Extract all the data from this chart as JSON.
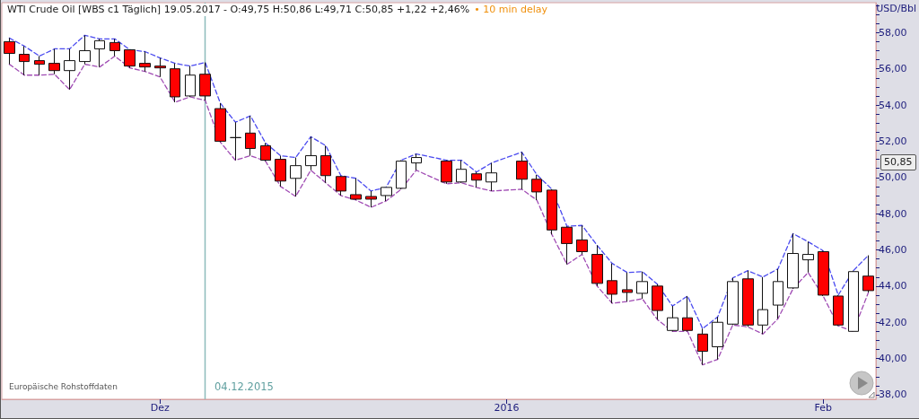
{
  "chart_data": {
    "type": "candlestick",
    "title": "WTI Crude Oil [WBS c1 Täglich] 19.05.2017 - O:49,75 H:50,86 L:49,71 C:50,85 +1,22 +2,46%",
    "subtitle": "• 10 min delay",
    "ylabel": "USD/Bbl",
    "annotations": [
      "Europäische Rohstoffdaten",
      "04.12.2015",
      "50,85"
    ],
    "categories": [
      null,
      null,
      null,
      null,
      null,
      null,
      null,
      null,
      null,
      null,
      "Dez",
      null,
      null,
      null,
      null,
      null,
      null,
      null,
      null,
      null,
      null,
      null,
      null,
      null,
      null,
      null,
      null,
      null,
      null,
      null,
      null,
      null,
      null,
      "2016",
      null,
      null,
      null,
      null,
      null,
      null,
      null,
      null,
      null,
      null,
      null,
      null,
      null,
      null,
      null,
      null,
      null,
      null,
      null,
      null,
      "Feb",
      null,
      null,
      null
    ],
    "ohlc": [
      [
        57.5,
        57.7,
        56.25,
        56.85
      ],
      [
        56.8,
        57.25,
        55.65,
        56.4
      ],
      [
        56.45,
        56.7,
        55.65,
        56.25
      ],
      [
        56.3,
        57.1,
        55.7,
        55.9
      ],
      [
        55.9,
        57.1,
        54.85,
        56.45
      ],
      [
        56.4,
        57.85,
        56.25,
        57
      ],
      [
        57.1,
        57.65,
        56.1,
        57.55
      ],
      [
        57.45,
        57.65,
        56.7,
        57
      ],
      [
        57.05,
        57.05,
        56.05,
        56.15
      ],
      [
        56.3,
        56.95,
        55.85,
        56.1
      ],
      [
        56.15,
        56.6,
        55.55,
        56.05
      ],
      [
        56,
        56.3,
        54.15,
        54.45
      ],
      [
        54.5,
        56.15,
        54.45,
        55.65
      ],
      [
        55.7,
        56.35,
        54.25,
        54.5
      ],
      [
        53.8,
        54.1,
        51.95,
        52
      ],
      [
        52.2,
        53.05,
        50.95,
        52.2
      ],
      [
        52.45,
        53.4,
        51.2,
        51.6
      ],
      [
        51.75,
        51.9,
        50.9,
        50.95
      ],
      [
        51,
        51.2,
        49.5,
        49.8
      ],
      [
        49.95,
        51.1,
        48.95,
        50.65
      ],
      [
        50.65,
        52.25,
        50.4,
        51.2
      ],
      [
        51.2,
        51.75,
        49.7,
        50.1
      ],
      [
        50.05,
        50.1,
        49,
        49.25
      ],
      [
        49.05,
        49.95,
        48.75,
        48.8
      ],
      [
        48.95,
        49.25,
        48.35,
        48.8
      ],
      [
        49,
        49.45,
        48.7,
        49.45
      ],
      [
        49.4,
        50.95,
        49.35,
        50.9
      ],
      [
        50.8,
        51.3,
        50.4,
        51.1
      ],
      null,
      [
        50.9,
        50.95,
        49.65,
        49.75
      ],
      [
        49.75,
        50.95,
        49.7,
        50.45
      ],
      [
        50.2,
        50.3,
        49.45,
        49.85
      ],
      [
        49.75,
        50.8,
        49.25,
        50.25
      ],
      null,
      [
        50.9,
        51.4,
        49.35,
        49.9
      ],
      [
        49.9,
        50.15,
        48.75,
        49.2
      ],
      [
        49.3,
        49.35,
        46.85,
        47.1
      ],
      [
        47.25,
        47.3,
        45.2,
        46.35
      ],
      [
        46.55,
        47.35,
        45.75,
        45.9
      ],
      [
        45.75,
        46.25,
        44,
        44.15
      ],
      [
        44.3,
        45.25,
        43.05,
        43.55
      ],
      [
        43.8,
        44.75,
        43.15,
        43.65
      ],
      [
        43.6,
        44.8,
        43.3,
        44.25
      ],
      [
        44,
        44.1,
        42.15,
        42.65
      ],
      [
        41.55,
        42.9,
        41.5,
        42.25
      ],
      [
        42.25,
        43.45,
        41.5,
        41.55
      ],
      [
        41.35,
        41.65,
        39.65,
        40.4
      ],
      [
        40.65,
        42.3,
        39.95,
        42
      ],
      [
        41.9,
        44.45,
        41.85,
        44.25
      ],
      [
        44.4,
        44.85,
        41.75,
        41.85
      ],
      [
        41.85,
        44.5,
        41.35,
        42.7
      ],
      [
        42.95,
        44.95,
        42.2,
        44.25
      ],
      [
        43.9,
        46.9,
        43.85,
        45.8
      ],
      [
        45.45,
        46.45,
        44.75,
        45.75
      ],
      [
        45.9,
        45.95,
        43.45,
        43.5
      ],
      [
        43.45,
        43.5,
        41.8,
        41.85
      ],
      [
        41.5,
        44.85,
        41.5,
        44.8
      ],
      [
        44.55,
        45.7,
        43.65,
        43.75
      ]
    ],
    "colors": [
      "#ff0000",
      "#ff0000",
      "#ff0000",
      "#ff0000",
      "#ffffff",
      "#ffffff",
      "#ffffff",
      "#ff0000",
      "#ff0000",
      "#ff0000",
      "#ff0000",
      "#ff0000",
      "#ffffff",
      "#ff0000",
      "#ff0000",
      "#111111",
      "#ff0000",
      "#ff0000",
      "#ff0000",
      "#ffffff",
      "#ffffff",
      "#ff0000",
      "#ff0000",
      "#ff0000",
      "#ff0000",
      "#ffffff",
      "#ffffff",
      "#ffffff",
      null,
      "#ff0000",
      "#ffffff",
      "#ff0000",
      "#ffffff",
      null,
      "#ff0000",
      "#ff0000",
      "#ff0000",
      "#ff0000",
      "#ff0000",
      "#ff0000",
      "#ff0000",
      "#ff0000",
      "#ffffff",
      "#ff0000",
      "#ffffff",
      "#ff0000",
      "#ff0000",
      "#ffffff",
      "#ffffff",
      "#ff0000",
      "#ffffff",
      "#ffffff",
      "#ffffff",
      "#ffffff",
      "#ff0000",
      "#ff0000",
      "#ffffff",
      "#ff0000"
    ],
    "series": [
      {
        "type": "line",
        "color": "#4a4af0",
        "line_style": "dashed",
        "values": [
          57.7,
          57.25,
          56.7,
          57.1,
          57.1,
          57.85,
          57.65,
          57.65,
          57.05,
          56.95,
          56.6,
          56.3,
          56.15,
          56.35,
          54.1,
          53.05,
          53.4,
          51.9,
          51.2,
          51.1,
          52.25,
          51.75,
          50.1,
          49.95,
          49.25,
          49.45,
          50.95,
          51.3,
          null,
          50.95,
          50.95,
          50.3,
          50.8,
          null,
          51.4,
          50.15,
          49.35,
          47.3,
          47.35,
          46.25,
          45.25,
          44.75,
          44.8,
          44.1,
          42.9,
          43.45,
          41.65,
          42.3,
          44.45,
          44.85,
          44.5,
          44.95,
          46.9,
          46.45,
          45.95,
          43.5,
          44.85,
          45.7
        ]
      },
      {
        "type": "line",
        "color": "#a04cb4",
        "line_style": "dashed",
        "values": [
          56.25,
          55.65,
          55.65,
          55.7,
          54.85,
          56.25,
          56.1,
          56.7,
          56.05,
          55.85,
          55.55,
          54.15,
          54.45,
          54.25,
          51.95,
          50.95,
          51.2,
          50.9,
          49.5,
          48.95,
          50.4,
          49.7,
          49,
          48.75,
          48.35,
          48.7,
          49.35,
          50.4,
          null,
          49.65,
          49.7,
          49.45,
          49.25,
          null,
          49.35,
          48.75,
          46.85,
          45.2,
          45.75,
          44,
          43.05,
          43.15,
          43.3,
          42.15,
          41.5,
          41.5,
          39.65,
          39.95,
          41.85,
          41.75,
          41.35,
          42.2,
          43.85,
          44.75,
          43.45,
          41.8,
          41.5,
          43.65
        ]
      }
    ],
    "marker": "none",
    "ylim": [
      37.75,
      59.65
    ],
    "yticks": [
      {
        "value": 38,
        "label": "38,00"
      },
      {
        "value": 38.5,
        "label": null
      },
      {
        "value": 39,
        "label": null
      },
      {
        "value": 39.5,
        "label": null
      },
      {
        "value": 40,
        "label": "40,00"
      },
      {
        "value": 40.5,
        "label": null
      },
      {
        "value": 41,
        "label": null
      },
      {
        "value": 41.5,
        "label": null
      },
      {
        "value": 42,
        "label": "42,00"
      },
      {
        "value": 42.5,
        "label": null
      },
      {
        "value": 43,
        "label": null
      },
      {
        "value": 43.5,
        "label": null
      },
      {
        "value": 44,
        "label": "44,00"
      },
      {
        "value": 44.5,
        "label": null
      },
      {
        "value": 45,
        "label": null
      },
      {
        "value": 45.5,
        "label": null
      },
      {
        "value": 46,
        "label": "46,00"
      },
      {
        "value": 46.5,
        "label": null
      },
      {
        "value": 47,
        "label": null
      },
      {
        "value": 47.5,
        "label": null
      },
      {
        "value": 48,
        "label": "48,00"
      },
      {
        "value": 48.5,
        "label": null
      },
      {
        "value": 49,
        "label": null
      },
      {
        "value": 49.5,
        "label": null
      },
      {
        "value": 50,
        "label": "50,00"
      },
      {
        "value": 50.5,
        "label": null
      },
      {
        "value": 51,
        "label": null
      },
      {
        "value": 51.5,
        "label": null
      },
      {
        "value": 52,
        "label": "52,00"
      },
      {
        "value": 52.5,
        "label": null
      },
      {
        "value": 53,
        "label": null
      },
      {
        "value": 53.5,
        "label": null
      },
      {
        "value": 54,
        "label": "54,00"
      },
      {
        "value": 54.5,
        "label": null
      },
      {
        "value": 55,
        "label": null
      },
      {
        "value": 55.5,
        "label": null
      },
      {
        "value": 56,
        "label": "56,00"
      },
      {
        "value": 56.5,
        "label": null
      },
      {
        "value": 57,
        "label": null
      },
      {
        "value": 57.5,
        "label": null
      },
      {
        "value": 58,
        "label": "58,00"
      },
      {
        "value": 58.5,
        "label": null
      },
      {
        "value": 59,
        "label": null
      },
      {
        "value": 59.5,
        "label": null
      }
    ]
  }
}
